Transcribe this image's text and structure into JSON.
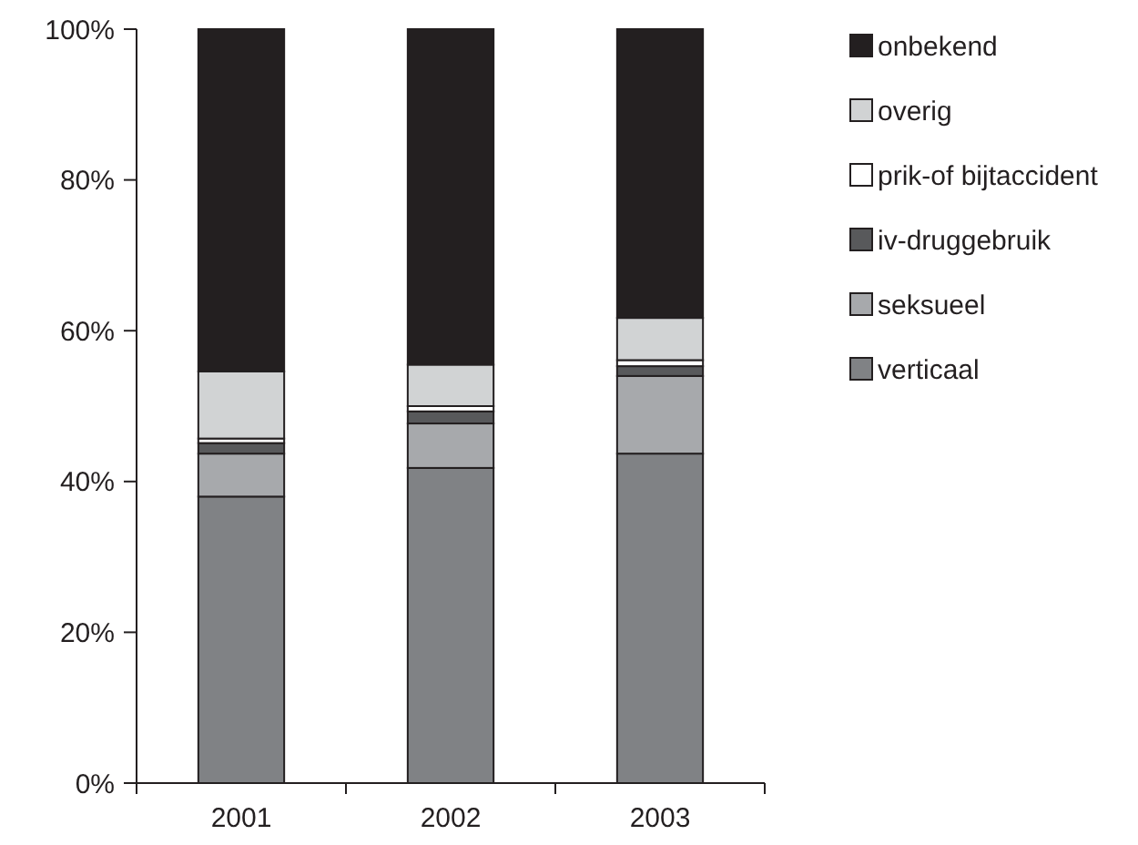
{
  "chart_data": {
    "type": "bar",
    "stacked": true,
    "categories": [
      "2001",
      "2002",
      "2003"
    ],
    "series": [
      {
        "name": "verticaal",
        "color": "#808285",
        "values": [
          38,
          41.8,
          43.7
        ]
      },
      {
        "name": "seksueel",
        "color": "#a7a9ac",
        "values": [
          5.7,
          5.9,
          10.3
        ]
      },
      {
        "name": "iv-druggebruik",
        "color": "#58595b",
        "values": [
          1.4,
          1.6,
          1.3
        ]
      },
      {
        "name": "prik-of bijtaccident",
        "color": "#ffffff",
        "values": [
          0.6,
          0.7,
          0.8
        ]
      },
      {
        "name": "overig",
        "color": "#d1d3d4",
        "values": [
          8.9,
          5.5,
          5.6
        ]
      },
      {
        "name": "onbekend",
        "color": "#231f20",
        "values": [
          45.4,
          44.5,
          38.3
        ]
      }
    ],
    "ylim": [
      0,
      100
    ],
    "yticks": [
      {
        "value": 0,
        "label": "0%"
      },
      {
        "value": 20,
        "label": "20%"
      },
      {
        "value": 40,
        "label": "40%"
      },
      {
        "value": 60,
        "label": "60%"
      },
      {
        "value": 80,
        "label": "80%"
      },
      {
        "value": 100,
        "label": "100%"
      }
    ],
    "legend": "right",
    "grid": false
  }
}
